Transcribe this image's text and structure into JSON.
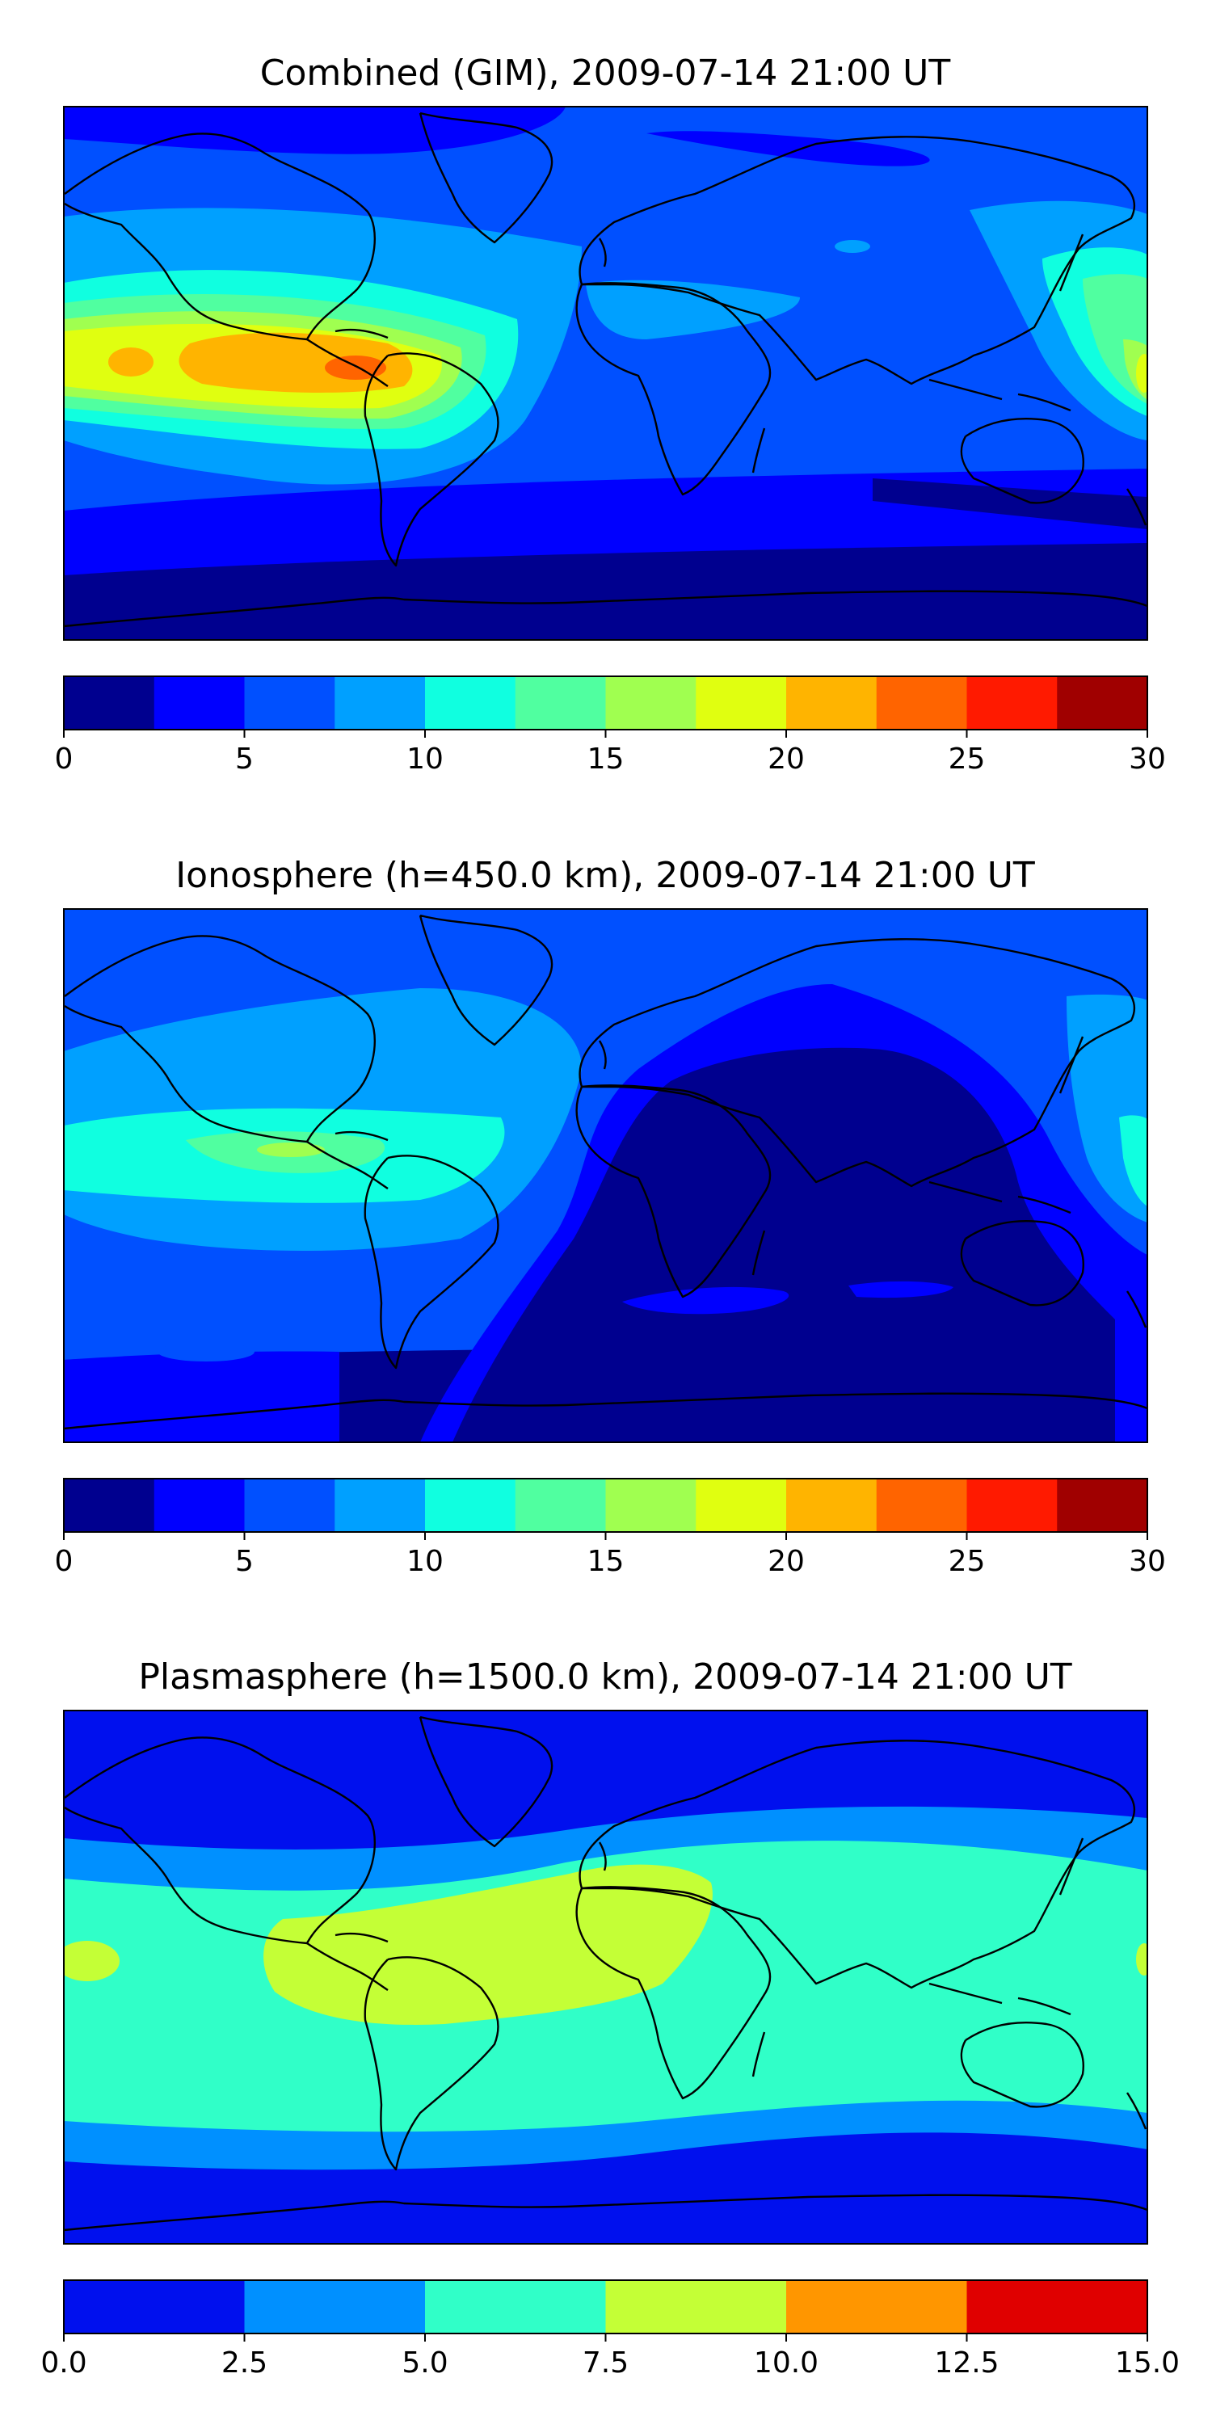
{
  "panels": [
    {
      "id": "combined",
      "title": "Combined (GIM), 2009-07-14 21:00 UT",
      "colorbar": {
        "min": 0,
        "max": 30,
        "colors": [
          "#00008f",
          "#0000ff",
          "#0050ff",
          "#00a0ff",
          "#10ffe0",
          "#50ffa0",
          "#a0ff50",
          "#e0ff10",
          "#ffb400",
          "#ff6400",
          "#ff1a00",
          "#a00000"
        ],
        "ticks": [
          "0",
          "5",
          "10",
          "15",
          "20",
          "25",
          "30"
        ],
        "tick_values": [
          0,
          5,
          10,
          15,
          20,
          25,
          30
        ]
      }
    },
    {
      "id": "ionosphere",
      "title": "Ionosphere  (h=450.0 km), 2009-07-14 21:00 UT",
      "colorbar": {
        "min": 0,
        "max": 30,
        "colors": [
          "#00008f",
          "#0000ff",
          "#0050ff",
          "#00a0ff",
          "#10ffe0",
          "#50ffa0",
          "#a0ff50",
          "#e0ff10",
          "#ffb400",
          "#ff6400",
          "#ff1a00",
          "#a00000"
        ],
        "ticks": [
          "0",
          "5",
          "10",
          "15",
          "20",
          "25",
          "30"
        ],
        "tick_values": [
          0,
          5,
          10,
          15,
          20,
          25,
          30
        ]
      }
    },
    {
      "id": "plasmasphere",
      "title": "Plasmasphere (h=1500.0 km), 2009-07-14 21:00 UT",
      "colorbar": {
        "min": 0,
        "max": 15,
        "colors": [
          "#0010ee",
          "#0090ff",
          "#30ffc8",
          "#c4ff36",
          "#ff9600",
          "#e00000"
        ],
        "ticks": [
          "0.0",
          "2.5",
          "5.0",
          "7.5",
          "10.0",
          "12.5",
          "15.0"
        ],
        "tick_values": [
          0,
          2.5,
          5,
          7.5,
          10,
          12.5,
          15
        ]
      }
    }
  ]
}
